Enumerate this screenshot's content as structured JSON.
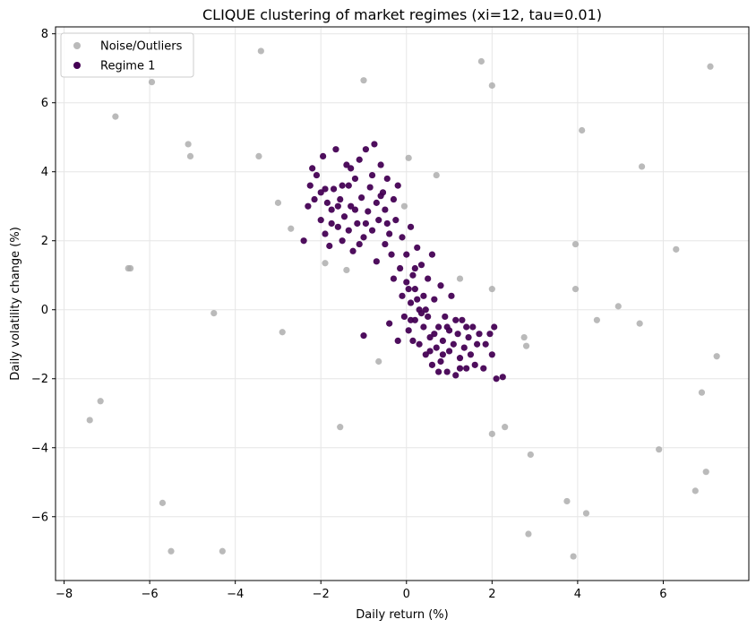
{
  "chart_data": {
    "type": "scatter",
    "title": "CLIQUE clustering of market regimes (xi=12, tau=0.01)",
    "xlabel": "Daily return (%)",
    "ylabel": "Daily volatility change (%)",
    "xlim": [
      -8.2,
      8.0
    ],
    "ylim": [
      -7.85,
      8.2
    ],
    "xticks": [
      -8,
      -6,
      -4,
      -2,
      0,
      2,
      4,
      6
    ],
    "yticks": [
      -6,
      -4,
      -2,
      0,
      2,
      4,
      6,
      8
    ],
    "grid": true,
    "legend_position": "top-left",
    "series": [
      {
        "name": "Noise/Outliers",
        "color": "#a9a9a9",
        "points": [
          [
            -7.4,
            -3.2
          ],
          [
            -7.15,
            -2.65
          ],
          [
            -6.8,
            5.6
          ],
          [
            -6.5,
            1.2
          ],
          [
            -6.45,
            1.2
          ],
          [
            -5.95,
            6.6
          ],
          [
            -5.7,
            -5.6
          ],
          [
            -5.5,
            -7.0
          ],
          [
            -5.1,
            4.8
          ],
          [
            -5.05,
            4.45
          ],
          [
            -4.5,
            -0.1
          ],
          [
            -4.3,
            -7.0
          ],
          [
            -3.45,
            4.45
          ],
          [
            -3.4,
            7.5
          ],
          [
            -2.9,
            -0.65
          ],
          [
            -2.7,
            2.35
          ],
          [
            -3.0,
            3.1
          ],
          [
            -1.9,
            1.35
          ],
          [
            -1.4,
            1.15
          ],
          [
            -1.55,
            -3.4
          ],
          [
            -1.0,
            6.65
          ],
          [
            -0.65,
            -1.5
          ],
          [
            -0.05,
            3.0
          ],
          [
            0.05,
            4.4
          ],
          [
            0.7,
            3.9
          ],
          [
            1.25,
            0.9
          ],
          [
            1.75,
            7.2
          ],
          [
            2.0,
            6.5
          ],
          [
            2.0,
            0.6
          ],
          [
            2.0,
            -3.6
          ],
          [
            2.3,
            -3.4
          ],
          [
            2.75,
            -0.8
          ],
          [
            2.8,
            -1.05
          ],
          [
            2.85,
            -6.5
          ],
          [
            2.9,
            -4.2
          ],
          [
            3.75,
            -5.55
          ],
          [
            3.9,
            -7.15
          ],
          [
            3.95,
            1.9
          ],
          [
            3.95,
            0.6
          ],
          [
            4.1,
            5.2
          ],
          [
            4.2,
            -5.9
          ],
          [
            4.45,
            -0.3
          ],
          [
            4.95,
            0.1
          ],
          [
            5.45,
            -0.4
          ],
          [
            5.5,
            4.15
          ],
          [
            5.9,
            -4.05
          ],
          [
            6.3,
            1.75
          ],
          [
            6.75,
            -5.25
          ],
          [
            6.9,
            -2.4
          ],
          [
            7.0,
            -4.7
          ],
          [
            7.1,
            7.05
          ],
          [
            7.25,
            -1.35
          ]
        ]
      },
      {
        "name": "Regime 1",
        "color": "#440154",
        "points": [
          [
            -2.4,
            2.0
          ],
          [
            -2.3,
            3.0
          ],
          [
            -2.25,
            3.6
          ],
          [
            -2.2,
            4.1
          ],
          [
            -2.1,
            3.9
          ],
          [
            -2.0,
            2.6
          ],
          [
            -2.0,
            3.4
          ],
          [
            -1.95,
            4.45
          ],
          [
            -1.9,
            2.2
          ],
          [
            -1.85,
            3.1
          ],
          [
            -1.8,
            1.85
          ],
          [
            -1.75,
            2.9
          ],
          [
            -1.7,
            3.5
          ],
          [
            -1.65,
            4.65
          ],
          [
            -1.6,
            2.4
          ],
          [
            -1.55,
            3.2
          ],
          [
            -1.5,
            2.0
          ],
          [
            -1.5,
            3.6
          ],
          [
            -1.45,
            2.7
          ],
          [
            -1.4,
            4.2
          ],
          [
            -1.35,
            2.3
          ],
          [
            -1.3,
            3.0
          ],
          [
            -1.25,
            1.7
          ],
          [
            -1.2,
            3.8
          ],
          [
            -1.15,
            2.5
          ],
          [
            -1.1,
            4.35
          ],
          [
            -1.05,
            3.25
          ],
          [
            -1.0,
            2.1
          ],
          [
            -1.0,
            -0.75
          ],
          [
            -0.95,
            4.65
          ],
          [
            -0.9,
            2.85
          ],
          [
            -0.85,
            3.55
          ],
          [
            -0.8,
            2.3
          ],
          [
            -0.75,
            4.8
          ],
          [
            -0.7,
            3.1
          ],
          [
            -0.7,
            1.4
          ],
          [
            -0.65,
            2.6
          ],
          [
            -0.6,
            4.2
          ],
          [
            -0.55,
            3.4
          ],
          [
            -0.5,
            1.9
          ],
          [
            -0.5,
            2.9
          ],
          [
            -0.45,
            3.8
          ],
          [
            -0.4,
            2.2
          ],
          [
            -0.35,
            1.6
          ],
          [
            -0.3,
            3.2
          ],
          [
            -0.3,
            0.9
          ],
          [
            -0.25,
            2.6
          ],
          [
            -0.2,
            3.6
          ],
          [
            -0.15,
            1.2
          ],
          [
            -0.1,
            0.4
          ],
          [
            -0.1,
            2.1
          ],
          [
            -0.05,
            -0.2
          ],
          [
            0.0,
            0.8
          ],
          [
            0.0,
            1.6
          ],
          [
            0.05,
            -0.6
          ],
          [
            0.1,
            0.2
          ],
          [
            0.1,
            2.4
          ],
          [
            0.15,
            1.0
          ],
          [
            0.2,
            -0.3
          ],
          [
            0.2,
            0.6
          ],
          [
            0.25,
            1.8
          ],
          [
            0.3,
            0.0
          ],
          [
            0.3,
            -1.0
          ],
          [
            0.35,
            1.3
          ],
          [
            0.4,
            -0.5
          ],
          [
            0.4,
            0.4
          ],
          [
            0.45,
            -1.3
          ],
          [
            0.5,
            0.9
          ],
          [
            0.5,
            -0.2
          ],
          [
            0.55,
            -0.8
          ],
          [
            0.6,
            1.6
          ],
          [
            0.6,
            -1.6
          ],
          [
            0.65,
            0.3
          ],
          [
            0.7,
            -1.1
          ],
          [
            0.75,
            -0.5
          ],
          [
            0.8,
            0.7
          ],
          [
            0.8,
            -1.5
          ],
          [
            0.85,
            -0.9
          ],
          [
            0.9,
            -0.2
          ],
          [
            0.95,
            -1.8
          ],
          [
            1.0,
            -1.2
          ],
          [
            1.0,
            -0.6
          ],
          [
            1.05,
            0.4
          ],
          [
            1.1,
            -1.0
          ],
          [
            1.15,
            -1.9
          ],
          [
            1.2,
            -0.7
          ],
          [
            1.25,
            -1.4
          ],
          [
            1.3,
            -0.3
          ],
          [
            1.35,
            -1.1
          ],
          [
            1.4,
            -1.7
          ],
          [
            1.45,
            -0.8
          ],
          [
            1.5,
            -1.3
          ],
          [
            1.55,
            -0.5
          ],
          [
            1.6,
            -1.6
          ],
          [
            1.65,
            -1.0
          ],
          [
            1.7,
            -0.7
          ],
          [
            1.8,
            -1.7
          ],
          [
            1.85,
            -1.0
          ],
          [
            1.95,
            -0.7
          ],
          [
            2.0,
            -1.3
          ],
          [
            2.05,
            -0.5
          ],
          [
            2.1,
            -2.0
          ],
          [
            2.25,
            -1.95
          ],
          [
            0.15,
            -0.9
          ],
          [
            0.25,
            0.3
          ],
          [
            0.35,
            -0.1
          ],
          [
            -0.2,
            -0.9
          ],
          [
            -0.4,
            -0.4
          ],
          [
            0.05,
            0.6
          ],
          [
            0.1,
            -0.3
          ],
          [
            0.2,
            1.2
          ],
          [
            0.45,
            0.0
          ],
          [
            0.55,
            -1.2
          ],
          [
            0.65,
            -0.7
          ],
          [
            0.75,
            -1.8
          ],
          [
            0.85,
            -1.3
          ],
          [
            0.95,
            -0.5
          ],
          [
            1.15,
            -0.3
          ],
          [
            1.25,
            -1.7
          ],
          [
            1.4,
            -0.5
          ],
          [
            -1.2,
            2.9
          ],
          [
            -1.35,
            3.6
          ],
          [
            -1.6,
            3.0
          ],
          [
            -1.75,
            2.5
          ],
          [
            -1.9,
            3.5
          ],
          [
            -2.15,
            3.2
          ],
          [
            -0.95,
            2.5
          ],
          [
            -0.8,
            3.9
          ],
          [
            -0.6,
            3.3
          ],
          [
            -0.45,
            2.5
          ],
          [
            -1.1,
            1.9
          ],
          [
            -1.3,
            4.1
          ]
        ]
      }
    ]
  }
}
